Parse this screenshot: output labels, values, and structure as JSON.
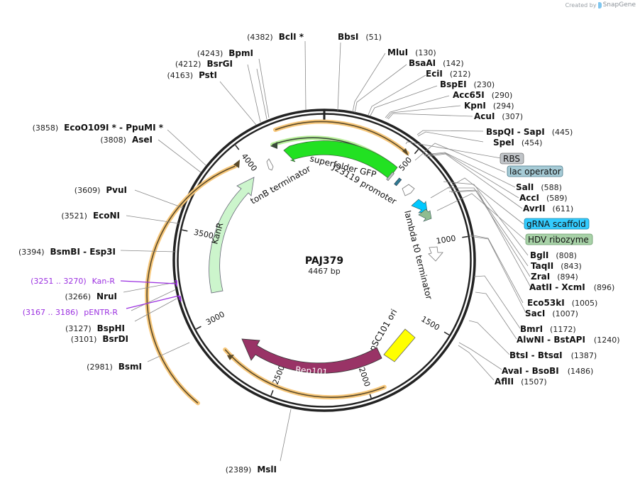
{
  "credit": {
    "prefix": "Created by",
    "brand": "SnapGene"
  },
  "plasmid": {
    "name": "PAJ379",
    "length_label": "4467 bp",
    "length": 4467
  },
  "ticks": [
    {
      "pos": 500,
      "label": "500"
    },
    {
      "pos": 1000,
      "label": "1000"
    },
    {
      "pos": 1500,
      "label": "1500"
    },
    {
      "pos": 2000,
      "label": "2000"
    },
    {
      "pos": 2500,
      "label": "2500"
    },
    {
      "pos": 3000,
      "label": "3000"
    },
    {
      "pos": 3500,
      "label": "3500"
    },
    {
      "pos": 4000,
      "label": "4000"
    }
  ],
  "features": [
    {
      "name": "superfolder GFP",
      "color": "#22e122",
      "type": "cds"
    },
    {
      "name": "J23119 promoter",
      "color": "#ffffff",
      "type": "promoter"
    },
    {
      "name": "tonB terminator",
      "color": "#ffffff",
      "type": "terminator"
    },
    {
      "name": "KanR",
      "color": "#ccf5cc",
      "type": "cds"
    },
    {
      "name": "lambda t0 terminator",
      "color": "#ffffff",
      "type": "terminator"
    },
    {
      "name": "pSC101 ori",
      "color": "#ffff00",
      "type": "origin"
    },
    {
      "name": "Rep101",
      "color": "#993366",
      "type": "cds"
    },
    {
      "name": "RBS",
      "color": "#c0c4c8",
      "type": "rbs"
    },
    {
      "name": "lac operator",
      "color": "#a6cbd6",
      "type": "protein_bind"
    },
    {
      "name": "gRNA scaffold",
      "color": "#33ccff",
      "type": "misc_RNA"
    },
    {
      "name": "HDV ribozyme",
      "color": "#99c499",
      "type": "ribozyme"
    }
  ],
  "right_sites": [
    {
      "name": "BbsI",
      "pos": "(51)"
    },
    {
      "name": "MluI",
      "pos": "(130)"
    },
    {
      "name": "BsaAI",
      "pos": "(142)"
    },
    {
      "name": "EciI",
      "pos": "(212)"
    },
    {
      "name": "BspEI",
      "pos": "(230)"
    },
    {
      "name": "Acc65I",
      "pos": "(290)"
    },
    {
      "name": "KpnI",
      "pos": "(294)"
    },
    {
      "name": "AcuI",
      "pos": "(307)"
    },
    {
      "name": "BspQI  - SapI",
      "pos": "(445)"
    },
    {
      "name": "SpeI",
      "pos": "(454)"
    },
    {
      "name": "SalI",
      "pos": "(588)"
    },
    {
      "name": "AccI",
      "pos": "(589)"
    },
    {
      "name": "AvrII",
      "pos": "(611)"
    },
    {
      "name": "BglI",
      "pos": "(808)"
    },
    {
      "name": "TaqII",
      "pos": "(843)"
    },
    {
      "name": "ZraI",
      "pos": "(894)"
    },
    {
      "name": "AatII  - XcmI",
      "pos": "(896)"
    },
    {
      "name": "Eco53kI",
      "pos": "(1005)"
    },
    {
      "name": "SacI",
      "pos": "(1007)"
    },
    {
      "name": "BmrI",
      "pos": "(1172)"
    },
    {
      "name": "AlwNI  - BstAPI",
      "pos": "(1240)"
    },
    {
      "name": "BtsI  - BtsαI",
      "pos": "(1387)"
    },
    {
      "name": "AvaI  - BsoBI",
      "pos": "(1486)"
    },
    {
      "name": "AflII",
      "pos": "(1507)"
    }
  ],
  "left_sites": [
    {
      "name": "BclI *",
      "pos": "(4382)"
    },
    {
      "name": "BpmI",
      "pos": "(4243)"
    },
    {
      "name": "BsrGI",
      "pos": "(4212)"
    },
    {
      "name": "PstI",
      "pos": "(4163)"
    },
    {
      "name": "EcoO109I *  - PpuMI *",
      "pos": "(3858)"
    },
    {
      "name": "AseI",
      "pos": "(3808)"
    },
    {
      "name": "PvuI",
      "pos": "(3609)"
    },
    {
      "name": "EcoNI",
      "pos": "(3521)"
    },
    {
      "name": "BsmBI  - Esp3I",
      "pos": "(3394)"
    },
    {
      "name": "NruI",
      "pos": "(3266)"
    },
    {
      "name": "BspHI",
      "pos": "(3127)"
    },
    {
      "name": "BsrDI",
      "pos": "(3101)"
    },
    {
      "name": "BsmI",
      "pos": "(2981)"
    },
    {
      "name": "MslI",
      "pos": "(2389)"
    }
  ],
  "primers": [
    {
      "name": "Kan-R",
      "range": "(3251 .. 3270)",
      "color": "#9b30e0"
    },
    {
      "name": "pENTR-R",
      "range": "(3167 .. 3186)",
      "color": "#9b30e0"
    }
  ],
  "colors": {
    "backbone": "#222222",
    "orf_orange": "#f7c77a",
    "orf_green": "#b8f09a",
    "lead_line": "#888888",
    "primer": "#9b30e0"
  }
}
